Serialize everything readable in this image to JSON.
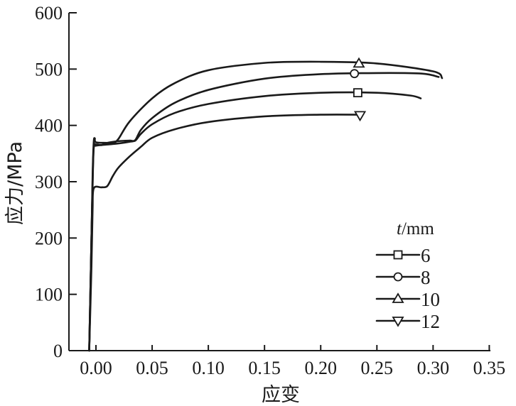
{
  "chart_data": {
    "type": "line",
    "xlabel": "应变",
    "ylabel": "应力/MPa",
    "xlim": [
      -0.03,
      0.35
    ],
    "ylim": [
      0,
      600
    ],
    "xticks": [
      "0.00",
      "0.05",
      "0.10",
      "0.15",
      "0.20",
      "0.25",
      "0.30",
      "0.35"
    ],
    "xtick_values": [
      0.0,
      0.05,
      0.1,
      0.15,
      0.2,
      0.25,
      0.3,
      0.35
    ],
    "yticks": [
      "0",
      "100",
      "200",
      "300",
      "400",
      "500",
      "600"
    ],
    "ytick_values": [
      0,
      100,
      200,
      300,
      400,
      500,
      600
    ],
    "grid": false,
    "legend": {
      "title_var": "t",
      "title_unit": "/mm",
      "placement": "right"
    },
    "series": [
      {
        "name": "6",
        "marker": "square",
        "points": [
          [
            -0.006,
            0
          ],
          [
            -0.004,
            200
          ],
          [
            -0.003,
            290
          ],
          [
            -0.002,
            360
          ],
          [
            0.0,
            366
          ],
          [
            0.005,
            365
          ],
          [
            0.01,
            369
          ],
          [
            0.02,
            372
          ],
          [
            0.03,
            373
          ],
          [
            0.035,
            373
          ],
          [
            0.04,
            385
          ],
          [
            0.05,
            402
          ],
          [
            0.07,
            422
          ],
          [
            0.1,
            438
          ],
          [
            0.15,
            452
          ],
          [
            0.2,
            458
          ],
          [
            0.25,
            458
          ],
          [
            0.28,
            453
          ],
          [
            0.289,
            448
          ]
        ],
        "marker_point": [
          0.233,
          458
        ]
      },
      {
        "name": "8",
        "marker": "circle",
        "points": [
          [
            -0.006,
            0
          ],
          [
            -0.004,
            200
          ],
          [
            -0.003,
            300
          ],
          [
            -0.002,
            360
          ],
          [
            0.0,
            364
          ],
          [
            0.01,
            366
          ],
          [
            0.02,
            368
          ],
          [
            0.03,
            371
          ],
          [
            0.035,
            374
          ],
          [
            0.04,
            392
          ],
          [
            0.05,
            413
          ],
          [
            0.07,
            440
          ],
          [
            0.1,
            463
          ],
          [
            0.15,
            483
          ],
          [
            0.2,
            491
          ],
          [
            0.25,
            493
          ],
          [
            0.29,
            492
          ],
          [
            0.305,
            486
          ]
        ],
        "marker_point": [
          0.23,
          492
        ]
      },
      {
        "name": "10",
        "marker": "triangle-up",
        "points": [
          [
            -0.006,
            0
          ],
          [
            -0.004,
            200
          ],
          [
            -0.003,
            310
          ],
          [
            -0.002,
            370
          ],
          [
            -0.001,
            377
          ],
          [
            0.0,
            370
          ],
          [
            0.01,
            369
          ],
          [
            0.015,
            368
          ],
          [
            0.02,
            376
          ],
          [
            0.03,
            407
          ],
          [
            0.05,
            448
          ],
          [
            0.07,
            475
          ],
          [
            0.1,
            498
          ],
          [
            0.15,
            511
          ],
          [
            0.2,
            513
          ],
          [
            0.25,
            510
          ],
          [
            0.3,
            496
          ],
          [
            0.308,
            484
          ]
        ],
        "marker_point": [
          0.234,
          510
        ]
      },
      {
        "name": "12",
        "marker": "triangle-down",
        "points": [
          [
            -0.006,
            0
          ],
          [
            -0.004,
            150
          ],
          [
            -0.003,
            250
          ],
          [
            -0.002,
            288
          ],
          [
            0.005,
            290
          ],
          [
            0.01,
            292
          ],
          [
            0.015,
            310
          ],
          [
            0.02,
            325
          ],
          [
            0.03,
            345
          ],
          [
            0.04,
            362
          ],
          [
            0.05,
            378
          ],
          [
            0.07,
            393
          ],
          [
            0.1,
            406
          ],
          [
            0.15,
            416
          ],
          [
            0.2,
            419
          ],
          [
            0.237,
            419
          ]
        ],
        "marker_point": [
          0.235,
          418
        ]
      }
    ]
  }
}
